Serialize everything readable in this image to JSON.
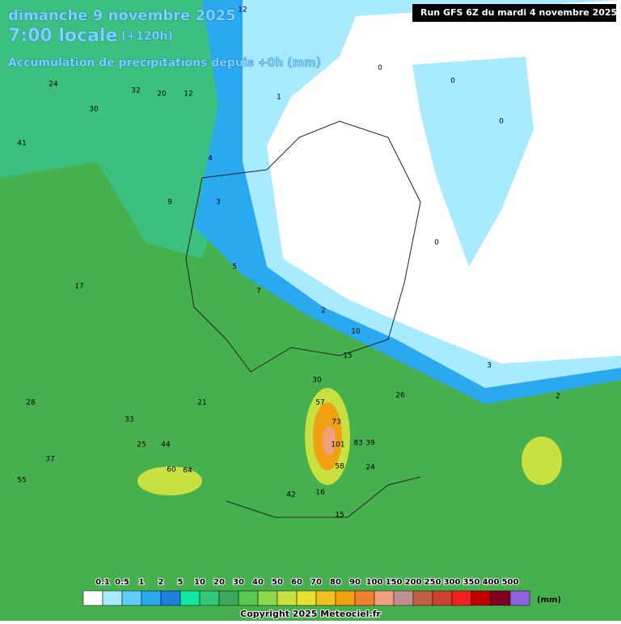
{
  "header": {
    "date": "dimanche 9 novembre 2025",
    "time": "7:00 locale",
    "lead": "(+120h)",
    "subtitle": "Accumulation de précipitations depuis +0h (mm)",
    "run": "Run GFS 6Z du mardi 4 novembre 2025"
  },
  "map": {
    "labels": [
      12,
      24,
      30,
      32,
      20,
      12,
      9,
      4,
      3,
      1,
      0,
      0,
      0,
      0,
      2,
      5,
      7,
      10,
      15,
      30,
      57,
      73,
      101,
      83,
      58,
      39,
      24,
      41,
      37,
      28,
      17,
      33,
      44,
      25,
      64,
      60,
      55,
      42,
      16,
      15,
      26,
      21,
      3,
      2
    ]
  },
  "legend": {
    "ticks": [
      "0.1",
      "0.5",
      "1",
      "2",
      "5",
      "10",
      "20",
      "30",
      "40",
      "50",
      "60",
      "70",
      "80",
      "90",
      "100",
      "150",
      "200",
      "250",
      "300",
      "350",
      "400",
      "500"
    ],
    "colors": [
      "#ffffff",
      "#a8eaff",
      "#5fcdfa",
      "#2aa8f0",
      "#1e7fe0",
      "#13e8a0",
      "#32c878",
      "#3ca85a",
      "#5ac850",
      "#8cd848",
      "#c8e040",
      "#e8e030",
      "#f0c020",
      "#f0a010",
      "#f08030",
      "#f0a080",
      "#c09090",
      "#c06040",
      "#d04030",
      "#f02020",
      "#c00000",
      "#800020",
      "#9060e0"
    ],
    "unit": "(mm)"
  },
  "footer": {
    "copyright": "Copyright 2025 Meteociel.fr"
  }
}
